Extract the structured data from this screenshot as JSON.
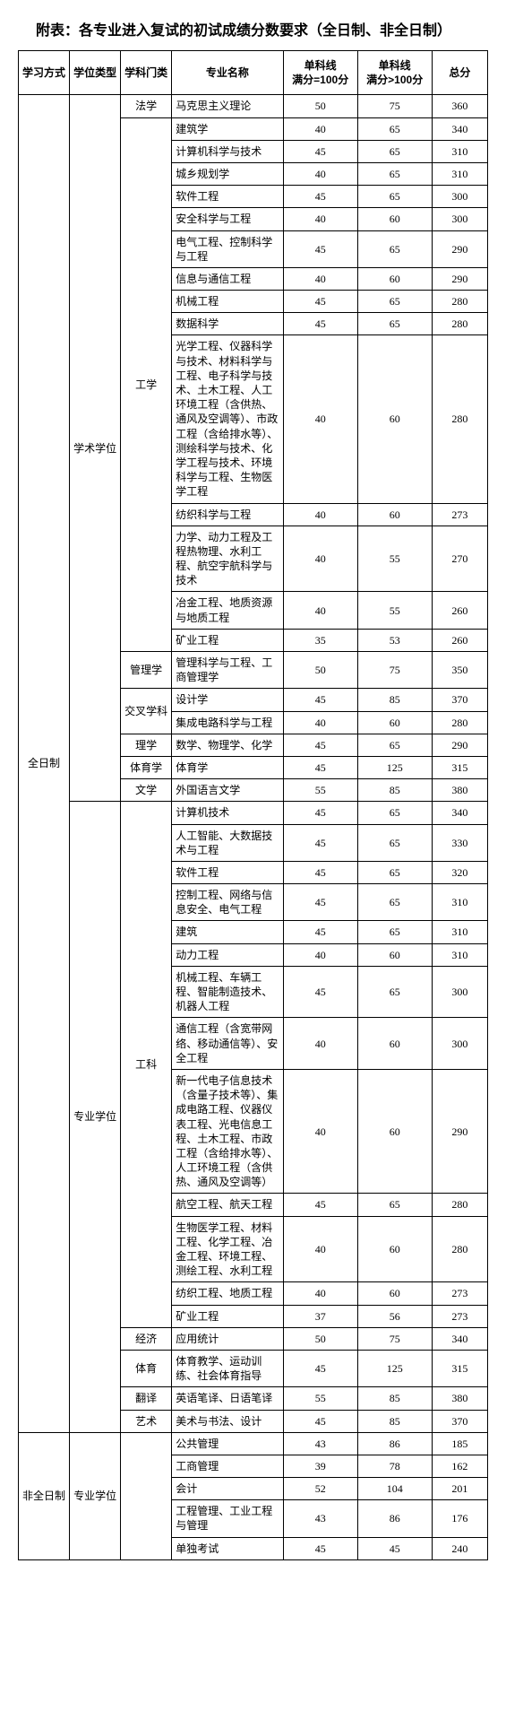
{
  "title": "附表：各专业进入复试的初试成绩分数要求（全日制、非全日制）",
  "headers": {
    "c1": "学习方式",
    "c2": "学位类型",
    "c3": "学科门类",
    "c4": "专业名称",
    "c5": "单科线\n满分=100分",
    "c6": "单科线\n满分>100分",
    "c7": "总分"
  },
  "modes": {
    "full": "全日制",
    "part": "非全日制"
  },
  "degree": {
    "acad": "学术学位",
    "prof": "专业学位"
  },
  "cat": {
    "law": "法学",
    "eng": "工学",
    "mgmt": "管理学",
    "cross": "交叉学科",
    "sci": "理学",
    "pe": "体育学",
    "lit": "文学",
    "engP": "工科",
    "econ": "经济",
    "peP": "体育",
    "trans": "翻译",
    "art": "艺术"
  },
  "rows": [
    {
      "name": "马克思主义理论",
      "s1": "50",
      "s2": "75",
      "t": "360"
    },
    {
      "name": "建筑学",
      "s1": "40",
      "s2": "65",
      "t": "340"
    },
    {
      "name": "计算机科学与技术",
      "s1": "45",
      "s2": "65",
      "t": "310"
    },
    {
      "name": "城乡规划学",
      "s1": "40",
      "s2": "65",
      "t": "310"
    },
    {
      "name": "软件工程",
      "s1": "45",
      "s2": "65",
      "t": "300"
    },
    {
      "name": "安全科学与工程",
      "s1": "40",
      "s2": "60",
      "t": "300"
    },
    {
      "name": "电气工程、控制科学与工程",
      "s1": "45",
      "s2": "65",
      "t": "290"
    },
    {
      "name": "信息与通信工程",
      "s1": "40",
      "s2": "60",
      "t": "290"
    },
    {
      "name": "机械工程",
      "s1": "45",
      "s2": "65",
      "t": "280"
    },
    {
      "name": "数据科学",
      "s1": "45",
      "s2": "65",
      "t": "280"
    },
    {
      "name": "光学工程、仪器科学与技术、材料科学与工程、电子科学与技术、土木工程、人工环境工程（含供热、通风及空调等）、市政工程（含给排水等）、测绘科学与技术、化学工程与技术、环境科学与工程、生物医学工程",
      "s1": "40",
      "s2": "60",
      "t": "280"
    },
    {
      "name": "纺织科学与工程",
      "s1": "40",
      "s2": "60",
      "t": "273"
    },
    {
      "name": "力学、动力工程及工程热物理、水利工程、航空宇航科学与技术",
      "s1": "40",
      "s2": "55",
      "t": "270"
    },
    {
      "name": "冶金工程、地质资源与地质工程",
      "s1": "40",
      "s2": "55",
      "t": "260"
    },
    {
      "name": "矿业工程",
      "s1": "35",
      "s2": "53",
      "t": "260"
    },
    {
      "name": "管理科学与工程、工商管理学",
      "s1": "50",
      "s2": "75",
      "t": "350"
    },
    {
      "name": "设计学",
      "s1": "45",
      "s2": "85",
      "t": "370"
    },
    {
      "name": "集成电路科学与工程",
      "s1": "40",
      "s2": "60",
      "t": "280"
    },
    {
      "name": "数学、物理学、化学",
      "s1": "45",
      "s2": "65",
      "t": "290"
    },
    {
      "name": "体育学",
      "s1": "45",
      "s2": "125",
      "t": "315"
    },
    {
      "name": "外国语言文学",
      "s1": "55",
      "s2": "85",
      "t": "380"
    },
    {
      "name": "计算机技术",
      "s1": "45",
      "s2": "65",
      "t": "340"
    },
    {
      "name": "人工智能、大数据技术与工程",
      "s1": "45",
      "s2": "65",
      "t": "330"
    },
    {
      "name": "软件工程",
      "s1": "45",
      "s2": "65",
      "t": "320"
    },
    {
      "name": "控制工程、网络与信息安全、电气工程",
      "s1": "45",
      "s2": "65",
      "t": "310"
    },
    {
      "name": "建筑",
      "s1": "45",
      "s2": "65",
      "t": "310"
    },
    {
      "name": "动力工程",
      "s1": "40",
      "s2": "60",
      "t": "310"
    },
    {
      "name": "机械工程、车辆工程、智能制造技术、机器人工程",
      "s1": "45",
      "s2": "65",
      "t": "300"
    },
    {
      "name": "通信工程（含宽带网络、移动通信等）、安全工程",
      "s1": "40",
      "s2": "60",
      "t": "300"
    },
    {
      "name": "新一代电子信息技术（含量子技术等）、集成电路工程、仪器仪表工程、光电信息工程、土木工程、市政工程（含给排水等）、人工环境工程（含供热、通风及空调等）",
      "s1": "40",
      "s2": "60",
      "t": "290"
    },
    {
      "name": "航空工程、航天工程",
      "s1": "45",
      "s2": "65",
      "t": "280"
    },
    {
      "name": "生物医学工程、材料工程、化学工程、冶金工程、环境工程、测绘工程、水利工程",
      "s1": "40",
      "s2": "60",
      "t": "280"
    },
    {
      "name": "纺织工程、地质工程",
      "s1": "40",
      "s2": "60",
      "t": "273"
    },
    {
      "name": "矿业工程",
      "s1": "37",
      "s2": "56",
      "t": "273"
    },
    {
      "name": "应用统计",
      "s1": "50",
      "s2": "75",
      "t": "340"
    },
    {
      "name": "体育教学、运动训练、社会体育指导",
      "s1": "45",
      "s2": "125",
      "t": "315"
    },
    {
      "name": "英语笔译、日语笔译",
      "s1": "55",
      "s2": "85",
      "t": "380"
    },
    {
      "name": "美术与书法、设计",
      "s1": "45",
      "s2": "85",
      "t": "370"
    },
    {
      "name": "公共管理",
      "s1": "43",
      "s2": "86",
      "t": "185"
    },
    {
      "name": "工商管理",
      "s1": "39",
      "s2": "78",
      "t": "162"
    },
    {
      "name": "会计",
      "s1": "52",
      "s2": "104",
      "t": "201"
    },
    {
      "name": "工程管理、工业工程与管理",
      "s1": "43",
      "s2": "86",
      "t": "176"
    },
    {
      "name": "单独考试",
      "s1": "45",
      "s2": "45",
      "t": "240"
    }
  ]
}
